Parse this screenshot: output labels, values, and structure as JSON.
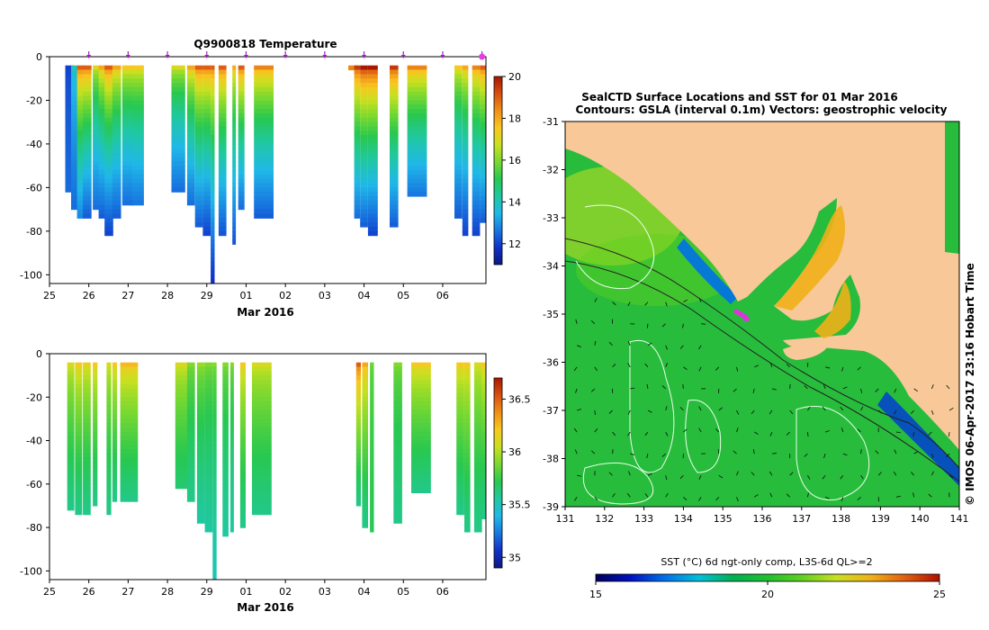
{
  "chart_data": [
    {
      "type": "heatmap",
      "title": "Q9900818  Temperature",
      "x_ticks": [
        "25",
        "26",
        "27",
        "28",
        "29",
        "01",
        "02",
        "03",
        "04",
        "05",
        "06"
      ],
      "xlabel": "Mar 2016",
      "y_ticks": [
        0,
        -20,
        -40,
        -60,
        -80,
        -100
      ],
      "ylim": [
        -104,
        0
      ],
      "colorbar": {
        "min": 11,
        "max": 20,
        "ticks": [
          12,
          14,
          16,
          18,
          20
        ],
        "colormap": [
          "#0a1a80",
          "#1030c8",
          "#1878e0",
          "#20b8e8",
          "#20c8a0",
          "#28c850",
          "#78d830",
          "#c8e020",
          "#f8c820",
          "#f09018",
          "#d85010",
          "#a81800"
        ]
      },
      "profiles": [
        {
          "t": 25.4,
          "w": 0.22,
          "depth": 61,
          "top": 12,
          "bot": 12.5
        },
        {
          "t": 25.55,
          "w": 0.18,
          "depth": 69,
          "top": 14,
          "bot": 12.5
        },
        {
          "t": 25.7,
          "w": 0.18,
          "depth": 73,
          "top": 19,
          "bot": 12.8
        },
        {
          "t": 25.85,
          "w": 0.22,
          "depth": 73,
          "top": 19,
          "bot": 12.3
        },
        {
          "t": 26.1,
          "w": 0.18,
          "depth": 69,
          "top": 17,
          "bot": 12.5
        },
        {
          "t": 26.25,
          "w": 0.18,
          "depth": 73,
          "top": 18,
          "bot": 12.3
        },
        {
          "t": 26.4,
          "w": 0.22,
          "depth": 81,
          "top": 19,
          "bot": 12.0
        },
        {
          "t": 26.6,
          "w": 0.22,
          "depth": 73,
          "top": 18,
          "bot": 12.3
        },
        {
          "t": 26.85,
          "w": 0.3,
          "depth": 67,
          "top": 17.5,
          "bot": 12.5
        },
        {
          "t": 27.1,
          "w": 0.3,
          "depth": 67,
          "top": 17.5,
          "bot": 12.6
        },
        {
          "t": 28.1,
          "w": 0.35,
          "depth": 61,
          "top": 17,
          "bot": 12.5
        },
        {
          "t": 28.5,
          "w": 0.2,
          "depth": 67,
          "top": 18,
          "bot": 12.5
        },
        {
          "t": 28.7,
          "w": 0.2,
          "depth": 77,
          "top": 19,
          "bot": 12.3
        },
        {
          "t": 28.9,
          "w": 0.2,
          "depth": 81,
          "top": 19,
          "bot": 12.0
        },
        {
          "t": 29.1,
          "w": 0.1,
          "depth": 104,
          "top": 19,
          "bot": 11.7
        },
        {
          "t": 29.3,
          "w": 0.2,
          "depth": 81,
          "top": 19,
          "bot": 12.2
        },
        {
          "t": 29.65,
          "w": 0.09,
          "depth": 85,
          "top": 18,
          "bot": 12.2
        },
        {
          "t": 29.8,
          "w": 0.16,
          "depth": 69,
          "top": 19,
          "bot": 12.5
        },
        {
          "t": 30.2,
          "w": 0.5,
          "depth": 73,
          "top": 18.5,
          "bot": 12.3
        },
        {
          "t": 32.6,
          "w": 0.25,
          "depth": 5,
          "top": 18.5,
          "bot": 18.0
        },
        {
          "t": 32.75,
          "w": 0.15,
          "depth": 73,
          "top": 19.5,
          "bot": 12.5
        },
        {
          "t": 32.9,
          "w": 0.2,
          "depth": 77,
          "top": 20,
          "bot": 12.3
        },
        {
          "t": 33.1,
          "w": 0.25,
          "depth": 81,
          "top": 20,
          "bot": 12.0
        },
        {
          "t": 33.65,
          "w": 0.22,
          "depth": 77,
          "top": 19.5,
          "bot": 12.3
        },
        {
          "t": 34.1,
          "w": 0.5,
          "depth": 63,
          "top": 18.5,
          "bot": 12.6
        },
        {
          "t": 35.3,
          "w": 0.2,
          "depth": 73,
          "top": 17.5,
          "bot": 12.3
        },
        {
          "t": 35.5,
          "w": 0.15,
          "depth": 81,
          "top": 18,
          "bot": 12.0
        },
        {
          "t": 35.75,
          "w": 0.2,
          "depth": 81,
          "top": 18.5,
          "bot": 12.0
        },
        {
          "t": 35.95,
          "w": 0.15,
          "depth": 75,
          "top": 19,
          "bot": 12.3
        }
      ],
      "markers_x": [
        26,
        27,
        28,
        29,
        30,
        31,
        32,
        33,
        34,
        35,
        36
      ],
      "end_marker_x": 36
    },
    {
      "type": "heatmap",
      "x_ticks": [
        "25",
        "26",
        "27",
        "28",
        "29",
        "01",
        "02",
        "03",
        "04",
        "05",
        "06"
      ],
      "xlabel": "Mar 2016",
      "y_ticks": [
        0,
        -20,
        -40,
        -60,
        -80,
        -100
      ],
      "ylim": [
        -104,
        0
      ],
      "colorbar": {
        "min": 34.9,
        "max": 36.7,
        "ticks": [
          "35",
          "35.5",
          "36",
          "36.5"
        ],
        "colormap": [
          "#0a1a80",
          "#1030c8",
          "#1878e0",
          "#20b8e8",
          "#20c8a0",
          "#28c850",
          "#78d830",
          "#c8e020",
          "#f8c820",
          "#f09018",
          "#d85010",
          "#a81800"
        ]
      },
      "profiles": [
        {
          "t": 25.45,
          "w": 0.18,
          "depth": 71,
          "top": 36.1,
          "bot": 35.6
        },
        {
          "t": 25.65,
          "w": 0.18,
          "depth": 73,
          "top": 36.2,
          "bot": 35.6
        },
        {
          "t": 25.85,
          "w": 0.2,
          "depth": 73,
          "top": 36.15,
          "bot": 35.6
        },
        {
          "t": 26.1,
          "w": 0.12,
          "depth": 69,
          "top": 36.2,
          "bot": 35.6
        },
        {
          "t": 26.45,
          "w": 0.12,
          "depth": 73,
          "top": 36.1,
          "bot": 35.6
        },
        {
          "t": 26.6,
          "w": 0.12,
          "depth": 67,
          "top": 36.2,
          "bot": 35.6
        },
        {
          "t": 26.8,
          "w": 0.45,
          "depth": 67,
          "top": 36.25,
          "bot": 35.6
        },
        {
          "t": 28.2,
          "w": 0.35,
          "depth": 61,
          "top": 36.1,
          "bot": 35.65
        },
        {
          "t": 28.5,
          "w": 0.2,
          "depth": 67,
          "top": 35.9,
          "bot": 35.6
        },
        {
          "t": 28.75,
          "w": 0.2,
          "depth": 77,
          "top": 35.95,
          "bot": 35.55
        },
        {
          "t": 28.95,
          "w": 0.2,
          "depth": 81,
          "top": 35.9,
          "bot": 35.55
        },
        {
          "t": 29.15,
          "w": 0.1,
          "depth": 104,
          "top": 35.9,
          "bot": 35.5
        },
        {
          "t": 29.4,
          "w": 0.15,
          "depth": 83,
          "top": 35.9,
          "bot": 35.55
        },
        {
          "t": 29.6,
          "w": 0.09,
          "depth": 81,
          "top": 35.9,
          "bot": 35.55
        },
        {
          "t": 29.85,
          "w": 0.14,
          "depth": 79,
          "top": 36.2,
          "bot": 35.6
        },
        {
          "t": 30.15,
          "w": 0.5,
          "depth": 73,
          "top": 36.1,
          "bot": 35.6
        },
        {
          "t": 32.6,
          "w": 0.3,
          "depth": 3,
          "top": 35.8,
          "bot": 35.8
        },
        {
          "t": 32.8,
          "w": 0.12,
          "depth": 69,
          "top": 36.5,
          "bot": 35.6
        },
        {
          "t": 32.95,
          "w": 0.15,
          "depth": 79,
          "top": 36.3,
          "bot": 35.6
        },
        {
          "t": 33.15,
          "w": 0.1,
          "depth": 81,
          "top": 35.85,
          "bot": 35.7
        },
        {
          "t": 33.75,
          "w": 0.22,
          "depth": 77,
          "top": 35.9,
          "bot": 35.6
        },
        {
          "t": 34.2,
          "w": 0.5,
          "depth": 63,
          "top": 36.2,
          "bot": 35.6
        },
        {
          "t": 35.35,
          "w": 0.2,
          "depth": 73,
          "top": 36.2,
          "bot": 35.6
        },
        {
          "t": 35.55,
          "w": 0.15,
          "depth": 81,
          "top": 36.2,
          "bot": 35.6
        },
        {
          "t": 35.8,
          "w": 0.2,
          "depth": 81,
          "top": 36.1,
          "bot": 35.6
        },
        {
          "t": 35.98,
          "w": 0.12,
          "depth": 75,
          "top": 36.2,
          "bot": 35.6
        }
      ]
    },
    {
      "type": "heatmap",
      "title": "SealCTD Surface Locations and SST for 01 Mar 2016",
      "subtitle": "Contours: GSLA (interval 0.1m) Vectors: geostrophic velocity",
      "x_ticks": [
        131,
        132,
        133,
        134,
        135,
        136,
        137,
        138,
        139,
        140,
        141
      ],
      "y_ticks": [
        -31,
        -32,
        -33,
        -34,
        -35,
        -36,
        -37,
        -38,
        -39
      ],
      "xlim": [
        131,
        141
      ],
      "ylim": [
        -39,
        -31
      ],
      "side_text": "© IMOS 06-Apr-2017 23:16 Hobart Time",
      "colorbar": {
        "label": "SST (°C) 6d ngt-only comp, L3S-6d QL>=2",
        "min": 15,
        "max": 25,
        "ticks": [
          "15",
          "20",
          "25"
        ],
        "colormap": [
          "#00005a",
          "#0010c0",
          "#0070e8",
          "#00c0d8",
          "#00b050",
          "#20c030",
          "#60d020",
          "#c8e020",
          "#f0b018",
          "#e06010",
          "#b01000"
        ]
      },
      "land_color": "#f8c898",
      "ocean_color": "#28bc3c",
      "seal_locations": [
        [
          135.35,
          -34.95
        ],
        [
          135.45,
          -35.0
        ],
        [
          135.55,
          -35.05
        ],
        [
          135.6,
          -35.1
        ]
      ]
    }
  ]
}
